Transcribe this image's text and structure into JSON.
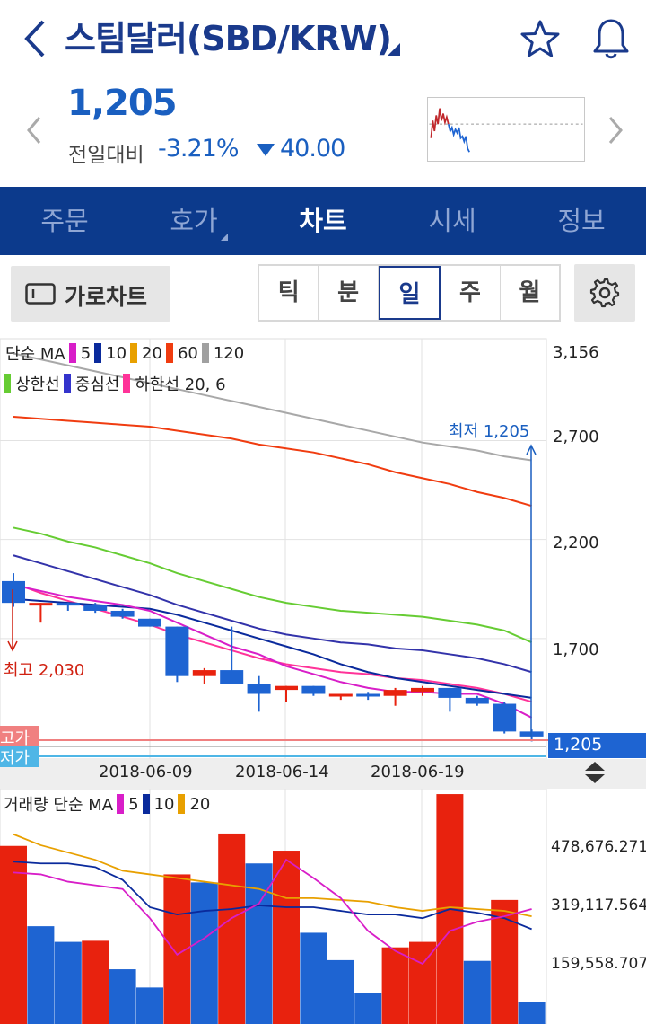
{
  "header": {
    "title": "스팀달러(SBD/KRW)",
    "price": "1,205",
    "change_label": "전일대비",
    "change_pct": "-3.21%",
    "change_amount": "40.00"
  },
  "nav_tabs": [
    {
      "label": "주문",
      "active": false,
      "has_sub": false
    },
    {
      "label": "호가",
      "active": false,
      "has_sub": true
    },
    {
      "label": "차트",
      "active": true,
      "has_sub": false
    },
    {
      "label": "시세",
      "active": false,
      "has_sub": false
    },
    {
      "label": "정보",
      "active": false,
      "has_sub": false
    }
  ],
  "toolbar": {
    "landscape_label": "가로차트",
    "periods": [
      {
        "label": "틱",
        "active": false
      },
      {
        "label": "분",
        "active": false
      },
      {
        "label": "일",
        "active": true
      },
      {
        "label": "주",
        "active": false
      },
      {
        "label": "월",
        "active": false
      }
    ]
  },
  "price_legend": {
    "ma_label": "단순 MA",
    "ma_items": [
      {
        "label": "5",
        "color": "#d81ec8"
      },
      {
        "label": "10",
        "color": "#0a2a9c"
      },
      {
        "label": "20",
        "color": "#e8a000"
      },
      {
        "label": "60",
        "color": "#f03c10"
      },
      {
        "label": "120",
        "color": "#a0a0a0"
      }
    ],
    "band_items": [
      {
        "label": "상한선",
        "color": "#66cc33"
      },
      {
        "label": "중심선",
        "color": "#3333cc"
      },
      {
        "label": "하한선 20, 6",
        "color": "#ff3399"
      }
    ]
  },
  "volume_legend": {
    "label": "거래량 단순 MA",
    "ma_items": [
      {
        "label": "5",
        "color": "#d81ec8"
      },
      {
        "label": "10",
        "color": "#0a2a9c"
      },
      {
        "label": "20",
        "color": "#e8a000"
      }
    ]
  },
  "annotations": {
    "low": "최저 1,205",
    "high": "최고 2,030",
    "high_tag": "고가",
    "low_tag": "저가",
    "last_price": "1,205"
  },
  "colors": {
    "up": "#e8220e",
    "down": "#1e64d2",
    "brand": "#0c3a8c"
  },
  "chart_data": [
    {
      "type": "candlestick",
      "y_ticks": [
        "3,156",
        "2,700",
        "2,200",
        "1,700"
      ],
      "ylim": [
        1150,
        3156
      ],
      "x_ticks": [
        "2018-06-09",
        "2018-06-14",
        "2018-06-19"
      ],
      "candles": [
        {
          "o": 1990,
          "h": 2030,
          "l": 1860,
          "c": 1880
        },
        {
          "o": 1880,
          "h": 1880,
          "l": 1780,
          "c": 1880
        },
        {
          "o": 1880,
          "h": 1880,
          "l": 1840,
          "c": 1870
        },
        {
          "o": 1870,
          "h": 1880,
          "l": 1830,
          "c": 1840
        },
        {
          "o": 1840,
          "h": 1850,
          "l": 1800,
          "c": 1810
        },
        {
          "o": 1800,
          "h": 1800,
          "l": 1760,
          "c": 1760
        },
        {
          "o": 1760,
          "h": 1760,
          "l": 1480,
          "c": 1510
        },
        {
          "o": 1510,
          "h": 1550,
          "l": 1470,
          "c": 1540
        },
        {
          "o": 1540,
          "h": 1760,
          "l": 1480,
          "c": 1470
        },
        {
          "o": 1470,
          "h": 1510,
          "l": 1330,
          "c": 1420
        },
        {
          "o": 1440,
          "h": 1460,
          "l": 1380,
          "c": 1460
        },
        {
          "o": 1460,
          "h": 1460,
          "l": 1410,
          "c": 1420
        },
        {
          "o": 1420,
          "h": 1420,
          "l": 1390,
          "c": 1420
        },
        {
          "o": 1420,
          "h": 1430,
          "l": 1390,
          "c": 1410
        },
        {
          "o": 1410,
          "h": 1450,
          "l": 1360,
          "c": 1440
        },
        {
          "o": 1430,
          "h": 1460,
          "l": 1410,
          "c": 1450
        },
        {
          "o": 1450,
          "h": 1450,
          "l": 1330,
          "c": 1400
        },
        {
          "o": 1400,
          "h": 1410,
          "l": 1360,
          "c": 1370
        },
        {
          "o": 1370,
          "h": 1380,
          "l": 1220,
          "c": 1230
        },
        {
          "o": 1230,
          "h": 1240,
          "l": 1180,
          "c": 1205
        }
      ],
      "ma60": [
        2820,
        2810,
        2800,
        2790,
        2780,
        2770,
        2750,
        2730,
        2710,
        2680,
        2660,
        2640,
        2610,
        2580,
        2540,
        2510,
        2480,
        2440,
        2410,
        2370
      ],
      "ma120": [
        3140,
        3110,
        3080,
        3050,
        3020,
        2990,
        2960,
        2930,
        2900,
        2870,
        2840,
        2810,
        2780,
        2750,
        2720,
        2690,
        2670,
        2650,
        2620,
        2600
      ],
      "upper": [
        2260,
        2230,
        2190,
        2160,
        2120,
        2080,
        2030,
        1990,
        1950,
        1910,
        1880,
        1860,
        1840,
        1830,
        1820,
        1810,
        1790,
        1770,
        1740,
        1680
      ],
      "middle": [
        2120,
        2080,
        2040,
        2000,
        1960,
        1920,
        1870,
        1830,
        1790,
        1750,
        1720,
        1700,
        1680,
        1670,
        1650,
        1640,
        1620,
        1600,
        1570,
        1530
      ],
      "lower": [
        1980,
        1930,
        1890,
        1850,
        1810,
        1770,
        1720,
        1680,
        1640,
        1600,
        1570,
        1550,
        1530,
        1520,
        1500,
        1490,
        1470,
        1450,
        1420,
        1380
      ],
      "ma5": [
        1970,
        1940,
        1910,
        1890,
        1870,
        1840,
        1780,
        1720,
        1660,
        1620,
        1560,
        1520,
        1480,
        1450,
        1430,
        1430,
        1420,
        1420,
        1370,
        1300
      ],
      "ma10": [
        1900,
        1890,
        1880,
        1870,
        1860,
        1850,
        1820,
        1780,
        1740,
        1700,
        1660,
        1620,
        1570,
        1530,
        1500,
        1480,
        1460,
        1440,
        1420,
        1400
      ]
    },
    {
      "type": "bar",
      "y_ticks": [
        "478,676.271",
        "319,117.564",
        "159,558.707"
      ],
      "ylim": [
        0,
        640000
      ],
      "values": [
        488000,
        268000,
        225000,
        228000,
        150000,
        100000,
        410000,
        388000,
        522000,
        440000,
        475000,
        250000,
        175000,
        85000,
        210000,
        225000,
        630000,
        173000,
        340000,
        60000
      ],
      "up": [
        true,
        false,
        false,
        true,
        false,
        false,
        true,
        false,
        true,
        false,
        true,
        false,
        false,
        false,
        true,
        true,
        true,
        false,
        true,
        false
      ],
      "ma5": [
        415000,
        410000,
        390000,
        380000,
        370000,
        290000,
        190000,
        235000,
        290000,
        330000,
        450000,
        400000,
        345000,
        255000,
        200000,
        165000,
        255000,
        280000,
        295000,
        315000
      ],
      "ma10": [
        445000,
        440000,
        440000,
        430000,
        395000,
        320000,
        300000,
        310000,
        315000,
        325000,
        320000,
        320000,
        310000,
        300000,
        300000,
        290000,
        315000,
        305000,
        290000,
        260000
      ],
      "ma20": [
        520000,
        490000,
        470000,
        450000,
        420000,
        410000,
        400000,
        390000,
        380000,
        370000,
        345000,
        345000,
        340000,
        335000,
        320000,
        310000,
        320000,
        315000,
        310000,
        295000
      ]
    }
  ]
}
